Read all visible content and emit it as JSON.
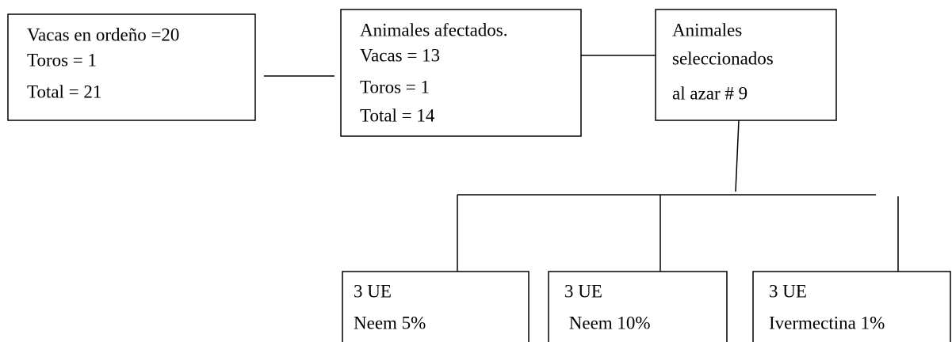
{
  "nodes": [
    {
      "lines": [
        "Vacas en ordeño =20",
        "Toros = 1",
        "Total = 21"
      ]
    },
    {
      "lines": [
        "Animales afectados.",
        "Vacas = 13",
        "Toros = 1",
        "Total = 14"
      ]
    },
    {
      "lines": [
        "Animales",
        "seleccionados",
        "al azar # 9"
      ]
    },
    {
      "lines": [
        "3 UE",
        "Neem 5%"
      ]
    },
    {
      "lines": [
        "3 UE",
        " Neem 10%"
      ]
    },
    {
      "lines": [
        "3 UE",
        "Ivermectina 1%"
      ]
    }
  ]
}
